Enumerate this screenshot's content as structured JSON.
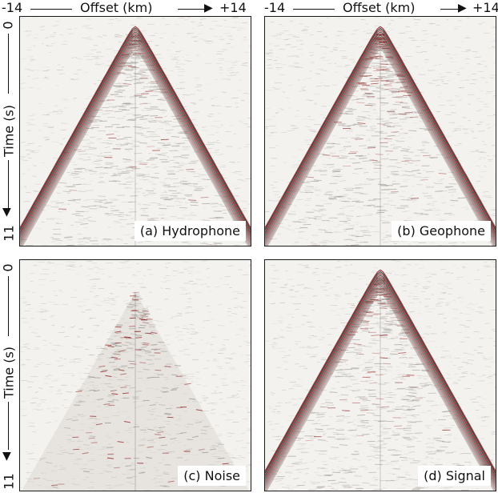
{
  "axes": {
    "x_left": "-14",
    "x_title": "Offset (km)",
    "x_right": "+14",
    "y_top": "0",
    "y_title": "Time (s)",
    "y_bottom": "11"
  },
  "panels": [
    {
      "id": "a",
      "label": "(a) Hydrophone",
      "kind": "hydrophone"
    },
    {
      "id": "b",
      "label": "(b) Geophone",
      "kind": "geophone"
    },
    {
      "id": "c",
      "label": "(c) Noise",
      "kind": "noise"
    },
    {
      "id": "d",
      "label": "(d) Signal",
      "kind": "signal"
    }
  ],
  "colors": {
    "wavefront": "#8b1a1a",
    "background": "#f4f2ef",
    "noise_gray": "#9a958f"
  }
}
